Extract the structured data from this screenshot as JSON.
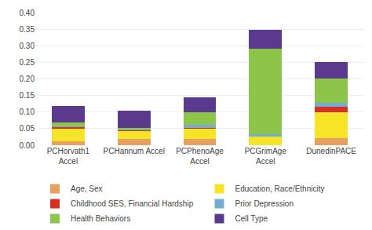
{
  "chart_data": {
    "type": "bar",
    "stacked": true,
    "categories": [
      "PCHorvath1\nAccel",
      "PCHannum Accel",
      "PCPhenoAge\nAccel",
      "PCGrimAge\nAccel",
      "DunedinPACE"
    ],
    "series": [
      {
        "name": "Age, Sex",
        "color": "#E8A060",
        "values": [
          0.012,
          0.018,
          0.02,
          0.0,
          0.022
        ]
      },
      {
        "name": "Education, Race/Ethnicity",
        "color": "#F5E428",
        "values": [
          0.038,
          0.025,
          0.03,
          0.025,
          0.078
        ]
      },
      {
        "name": "Childhood SES, Financial Hardship",
        "color": "#D73027",
        "values": [
          0.005,
          0.003,
          0.003,
          0.0,
          0.015
        ]
      },
      {
        "name": "Prior Depression",
        "color": "#74ADCE",
        "values": [
          0.003,
          0.002,
          0.008,
          0.008,
          0.012
        ]
      },
      {
        "name": "Health Behaviors",
        "color": "#8DC54B",
        "values": [
          0.01,
          0.005,
          0.038,
          0.258,
          0.075
        ]
      },
      {
        "name": "Cell Type",
        "color": "#5B3A8E",
        "values": [
          0.05,
          0.05,
          0.045,
          0.058,
          0.048
        ]
      }
    ],
    "ylim": [
      0,
      0.4
    ],
    "yticks": [
      {
        "value": 0,
        "label": "0.00"
      },
      {
        "value": 0.05,
        "label": "0.05"
      },
      {
        "value": 0.1,
        "label": "0.10"
      },
      {
        "value": 0.15,
        "label": "0.15"
      },
      {
        "value": 0.2,
        "label": "0.20"
      },
      {
        "value": 0.25,
        "label": "0.25"
      },
      {
        "value": 0.3,
        "label": "0.30"
      },
      {
        "value": 0.35,
        "label": "0.35"
      },
      {
        "value": 0.4,
        "label": "0.40"
      }
    ],
    "grid": true,
    "legend": "bottom"
  }
}
